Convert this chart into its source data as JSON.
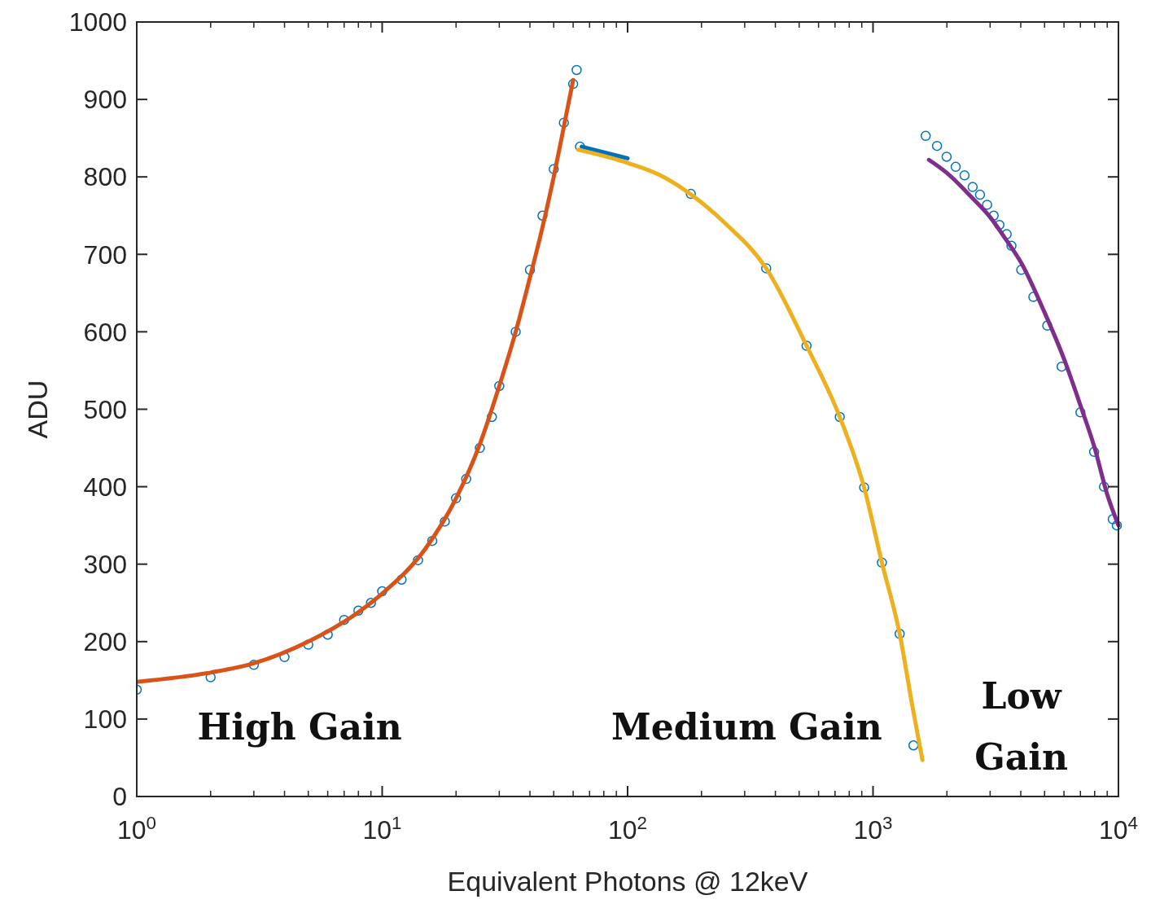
{
  "chart_data": {
    "type": "scatter",
    "xlabel": "Equivalent Photons @ 12keV",
    "ylabel": "ADU",
    "log": "x",
    "xlim": [
      1,
      10000
    ],
    "ylim": [
      0,
      1000
    ],
    "xticks": [
      {
        "value": 1,
        "label": "10$^{0}$"
      },
      {
        "value": 10,
        "label": "10$^{1}$"
      },
      {
        "value": 100,
        "label": "10$^{2}$"
      },
      {
        "value": 1000,
        "label": "10$^{3}$"
      },
      {
        "value": 10000,
        "label": "10$^{4}$"
      }
    ],
    "yticks": [
      0,
      100,
      200,
      300,
      400,
      500,
      600,
      700,
      800,
      900,
      1000
    ],
    "grid": false,
    "series": [
      {
        "type": "scatter",
        "marker": "circle",
        "color": "#0072bd",
        "x": [
          1,
          2,
          3,
          4,
          5,
          6,
          7,
          8,
          9,
          10,
          12,
          14,
          16,
          18,
          20,
          22,
          25,
          28,
          30,
          35,
          40,
          45,
          50,
          55,
          60,
          62
        ],
        "values": [
          138,
          154,
          170,
          180,
          196,
          209,
          228,
          240,
          250,
          265,
          280,
          305,
          330,
          355,
          385,
          410,
          450,
          490,
          530,
          600,
          680,
          750,
          810,
          870,
          920,
          938
        ]
      },
      {
        "type": "line",
        "color": "#d95319",
        "x": [
          1,
          2,
          3,
          5,
          8,
          10,
          15,
          20,
          25,
          30,
          35,
          40,
          45,
          50,
          55,
          60
        ],
        "values": [
          148,
          160,
          172,
          200,
          238,
          262,
          320,
          385,
          455,
          530,
          600,
          670,
          735,
          800,
          865,
          925
        ]
      },
      {
        "type": "scatter",
        "marker": "circle",
        "color": "#0072bd",
        "x": [
          64,
          181,
          367,
          536,
          732,
          920,
          1087,
          1284,
          1462
        ],
        "values": [
          839,
          778,
          682,
          582,
          490,
          399,
          302,
          210,
          66
        ]
      },
      {
        "type": "line",
        "color": "#0072bd",
        "x": [
          65,
          100
        ],
        "values": [
          839,
          824
        ]
      },
      {
        "type": "line",
        "color": "#edb120",
        "x": [
          63,
          100,
          140,
          180,
          250,
          367,
          536,
          732,
          920,
          1087,
          1284,
          1450,
          1590
        ],
        "values": [
          835,
          818,
          800,
          778,
          740,
          682,
          582,
          490,
          399,
          302,
          210,
          115,
          47
        ]
      },
      {
        "type": "scatter",
        "marker": "circle",
        "color": "#0072bd",
        "x": [
          1639,
          1823,
          1995,
          2172,
          2360,
          2547,
          2729,
          2917,
          3103,
          3273,
          3505,
          3665,
          4018,
          4500,
          5128,
          5870,
          7000,
          7960,
          8730,
          9480,
          9850
        ],
        "values": [
          853,
          840,
          826,
          813,
          802,
          787,
          777,
          764,
          750,
          738,
          726,
          711,
          680,
          645,
          608,
          555,
          496,
          445,
          400,
          358,
          350
        ]
      },
      {
        "type": "line",
        "color": "#7e2f8e",
        "x": [
          1690,
          2000,
          2500,
          3000,
          3500,
          4000,
          5000,
          6000,
          7000,
          8000,
          9000,
          10000
        ],
        "values": [
          822,
          805,
          775,
          748,
          718,
          690,
          625,
          565,
          505,
          450,
          390,
          350
        ]
      }
    ],
    "annotations": [
      "High Gain",
      "Medium Gain",
      "Low\nGain"
    ]
  }
}
